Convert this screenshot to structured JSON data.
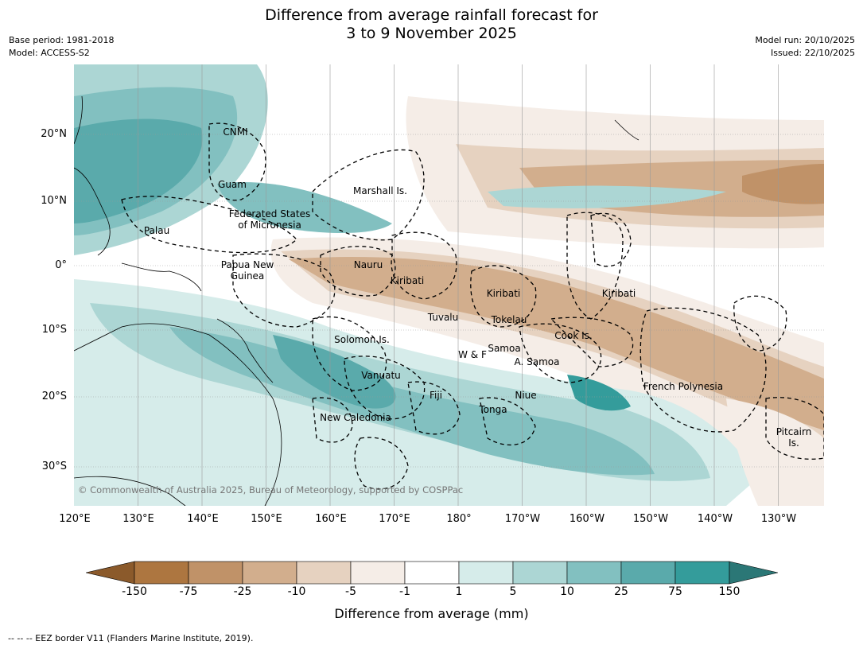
{
  "title_line1": "Difference from average rainfall forecast for",
  "title_line2": "3 to 9 November 2025",
  "meta_left": {
    "base_period": "Base period: 1981-2018",
    "model": "Model: ACCESS-S2"
  },
  "meta_right": {
    "model_run": "Model run: 20/10/2025",
    "issued": "Issued: 22/10/2025"
  },
  "map": {
    "lon_ticks": [
      "120°E",
      "130°E",
      "140°E",
      "150°E",
      "160°E",
      "170°E",
      "180°",
      "170°W",
      "160°W",
      "150°W",
      "140°W",
      "130°W"
    ],
    "lat_ticks": [
      "20°N",
      "10°N",
      "0°",
      "10°S",
      "20°S",
      "30°S"
    ],
    "places": [
      {
        "text": "CNMI"
      },
      {
        "text": "Guam"
      },
      {
        "text": "Marshall Is."
      },
      {
        "text": "Federated States\nof Micronesia"
      },
      {
        "text": "Palau"
      },
      {
        "text": "Papua New\nGuinea"
      },
      {
        "text": "Nauru"
      },
      {
        "text": "Kiribati"
      },
      {
        "text": "Kiribati"
      },
      {
        "text": "Kiribati"
      },
      {
        "text": "Tuvalu"
      },
      {
        "text": "Tokelau"
      },
      {
        "text": "Cook Is."
      },
      {
        "text": "Solomon Is."
      },
      {
        "text": "Samoa"
      },
      {
        "text": "W & F"
      },
      {
        "text": "A. Samoa"
      },
      {
        "text": "Vanuatu"
      },
      {
        "text": "Fiji"
      },
      {
        "text": "Niue"
      },
      {
        "text": "Tonga"
      },
      {
        "text": "French Polynesia"
      },
      {
        "text": "New Caledonia"
      },
      {
        "text": "Pitcairn\nIs."
      }
    ],
    "copyright": "© Commonwealth of Australia 2025, Bureau of Meteorology, supported by COSPPac"
  },
  "colorbar": {
    "label": "Difference from average (mm)",
    "ticks": [
      "-150",
      "-75",
      "-25",
      "-10",
      "-5",
      "-1",
      "1",
      "5",
      "10",
      "25",
      "75",
      "150"
    ],
    "colors": [
      "#8b5a2b",
      "#ad7640",
      "#c09268",
      "#d2ae8d",
      "#e6d2c0",
      "#f5ede7",
      "#ffffff",
      "#d6ecea",
      "#acd6d4",
      "#82c0c0",
      "#5aaaab",
      "#349c9b",
      "#2b7776"
    ]
  },
  "eez_note": "--  --  -- EEZ border V11 (Flanders Marine Institute, 2019)."
}
